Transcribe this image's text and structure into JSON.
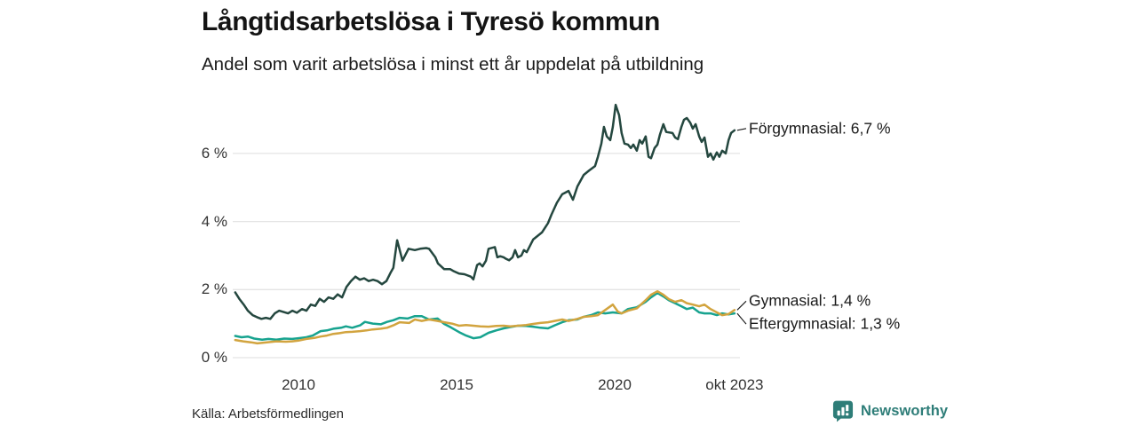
{
  "title": "Långtidsarbetslösa i Tyresö kommun",
  "subtitle": "Andel som varit arbetslösa i minst ett år uppdelat på utbildning",
  "source": "Källa: Arbetsförmedlingen",
  "brand": {
    "name": "Newsworthy",
    "color": "#2e7d78",
    "icon": "newsworthy-speech-bubble-bar-chart-icon"
  },
  "colors": {
    "background": "#ffffff",
    "gridline": "#e4e4e4",
    "tick_text": "#333333",
    "title_text": "#141414",
    "forgymnasial_line": "#24473f",
    "gymnasial_line": "#d2a43f",
    "eftergymnasial_line": "#17a38f"
  },
  "chart_data": {
    "type": "line",
    "title": "Långtidsarbetslösa i Tyresö kommun",
    "subtitle": "Andel som varit arbetslösa i minst ett år uppdelat på utbildning",
    "xlabel": "",
    "ylabel": "",
    "grid": "horizontal-only",
    "legend_position": "end-of-line-labels",
    "xlim": [
      2008.0,
      2023.95
    ],
    "ylim": [
      0,
      7.8
    ],
    "y_ticks": [
      {
        "value": 0,
        "label": "0 %"
      },
      {
        "value": 2,
        "label": "2 %"
      },
      {
        "value": 4,
        "label": "4 %"
      },
      {
        "value": 6,
        "label": "6 %"
      }
    ],
    "x_ticks": [
      {
        "year": 2010.0,
        "label": "2010"
      },
      {
        "year": 2015.0,
        "label": "2015"
      },
      {
        "year": 2020.0,
        "label": "2020"
      },
      {
        "year": 2023.79,
        "label": "okt 2023"
      }
    ],
    "series": [
      {
        "name": "Förgymnasial",
        "end_label": "Förgymnasial: 6,7 %",
        "end_value_text": "6,7 %",
        "color": "#24473f",
        "points": [
          [
            2008.0,
            1.92
          ],
          [
            2008.13,
            1.73
          ],
          [
            2008.27,
            1.56
          ],
          [
            2008.4,
            1.38
          ],
          [
            2008.55,
            1.25
          ],
          [
            2008.69,
            1.19
          ],
          [
            2008.83,
            1.14
          ],
          [
            2008.97,
            1.17
          ],
          [
            2009.11,
            1.14
          ],
          [
            2009.25,
            1.3
          ],
          [
            2009.39,
            1.38
          ],
          [
            2009.53,
            1.34
          ],
          [
            2009.67,
            1.3
          ],
          [
            2009.81,
            1.38
          ],
          [
            2009.95,
            1.32
          ],
          [
            2010.11,
            1.43
          ],
          [
            2010.25,
            1.38
          ],
          [
            2010.39,
            1.56
          ],
          [
            2010.53,
            1.52
          ],
          [
            2010.67,
            1.73
          ],
          [
            2010.81,
            1.64
          ],
          [
            2010.95,
            1.77
          ],
          [
            2011.1,
            1.73
          ],
          [
            2011.24,
            1.86
          ],
          [
            2011.38,
            1.77
          ],
          [
            2011.52,
            2.08
          ],
          [
            2011.66,
            2.25
          ],
          [
            2011.8,
            2.38
          ],
          [
            2011.94,
            2.29
          ],
          [
            2012.08,
            2.33
          ],
          [
            2012.22,
            2.25
          ],
          [
            2012.36,
            2.29
          ],
          [
            2012.5,
            2.25
          ],
          [
            2012.64,
            2.16
          ],
          [
            2012.78,
            2.25
          ],
          [
            2012.92,
            2.51
          ],
          [
            2013.0,
            2.64
          ],
          [
            2013.12,
            3.45
          ],
          [
            2013.29,
            2.85
          ],
          [
            2013.48,
            3.2
          ],
          [
            2013.68,
            3.16
          ],
          [
            2013.85,
            3.2
          ],
          [
            2014.04,
            3.22
          ],
          [
            2014.13,
            3.2
          ],
          [
            2014.33,
            2.95
          ],
          [
            2014.41,
            2.77
          ],
          [
            2014.61,
            2.6
          ],
          [
            2014.8,
            2.6
          ],
          [
            2014.89,
            2.55
          ],
          [
            2015.08,
            2.47
          ],
          [
            2015.25,
            2.45
          ],
          [
            2015.45,
            2.38
          ],
          [
            2015.53,
            2.3
          ],
          [
            2015.65,
            2.72
          ],
          [
            2015.73,
            2.77
          ],
          [
            2015.82,
            2.68
          ],
          [
            2015.93,
            2.85
          ],
          [
            2016.01,
            3.2
          ],
          [
            2016.21,
            3.25
          ],
          [
            2016.29,
            2.95
          ],
          [
            2016.38,
            2.98
          ],
          [
            2016.49,
            2.95
          ],
          [
            2016.57,
            2.9
          ],
          [
            2016.66,
            2.86
          ],
          [
            2016.77,
            2.95
          ],
          [
            2016.85,
            3.16
          ],
          [
            2016.94,
            2.95
          ],
          [
            2017.05,
            3.0
          ],
          [
            2017.13,
            3.16
          ],
          [
            2017.22,
            3.1
          ],
          [
            2017.33,
            3.3
          ],
          [
            2017.42,
            3.47
          ],
          [
            2017.7,
            3.68
          ],
          [
            2017.89,
            3.95
          ],
          [
            2018.0,
            4.2
          ],
          [
            2018.17,
            4.55
          ],
          [
            2018.34,
            4.8
          ],
          [
            2018.54,
            4.9
          ],
          [
            2018.68,
            4.64
          ],
          [
            2018.82,
            5.03
          ],
          [
            2019.02,
            5.37
          ],
          [
            2019.19,
            5.5
          ],
          [
            2019.38,
            5.63
          ],
          [
            2019.47,
            5.9
          ],
          [
            2019.58,
            6.29
          ],
          [
            2019.66,
            6.78
          ],
          [
            2019.75,
            6.5
          ],
          [
            2019.86,
            6.39
          ],
          [
            2019.94,
            6.78
          ],
          [
            2020.03,
            7.43
          ],
          [
            2020.14,
            7.12
          ],
          [
            2020.22,
            6.6
          ],
          [
            2020.31,
            6.29
          ],
          [
            2020.42,
            6.26
          ],
          [
            2020.51,
            6.16
          ],
          [
            2020.59,
            6.26
          ],
          [
            2020.7,
            6.08
          ],
          [
            2020.79,
            6.39
          ],
          [
            2020.87,
            6.29
          ],
          [
            2020.98,
            6.5
          ],
          [
            2021.07,
            5.9
          ],
          [
            2021.15,
            5.86
          ],
          [
            2021.26,
            6.16
          ],
          [
            2021.35,
            6.26
          ],
          [
            2021.43,
            6.55
          ],
          [
            2021.54,
            6.86
          ],
          [
            2021.63,
            6.63
          ],
          [
            2021.83,
            6.6
          ],
          [
            2021.91,
            6.47
          ],
          [
            2022.0,
            6.42
          ],
          [
            2022.11,
            6.78
          ],
          [
            2022.19,
            6.99
          ],
          [
            2022.28,
            7.04
          ],
          [
            2022.39,
            6.9
          ],
          [
            2022.47,
            6.73
          ],
          [
            2022.56,
            6.86
          ],
          [
            2022.67,
            6.5
          ],
          [
            2022.75,
            6.34
          ],
          [
            2022.84,
            6.47
          ],
          [
            2022.95,
            5.9
          ],
          [
            2023.03,
            6.0
          ],
          [
            2023.12,
            5.82
          ],
          [
            2023.23,
            6.03
          ],
          [
            2023.31,
            5.9
          ],
          [
            2023.4,
            6.08
          ],
          [
            2023.51,
            6.0
          ],
          [
            2023.6,
            6.39
          ],
          [
            2023.68,
            6.6
          ],
          [
            2023.79,
            6.68
          ]
        ]
      },
      {
        "name": "Eftergymnasial",
        "end_label": "Eftergymnasial: 1,3 %",
        "end_value_text": "1,3 %",
        "color": "#17a38f",
        "points": [
          [
            2008.0,
            0.64
          ],
          [
            2008.2,
            0.6
          ],
          [
            2008.4,
            0.62
          ],
          [
            2008.6,
            0.56
          ],
          [
            2008.85,
            0.53
          ],
          [
            2009.05,
            0.55
          ],
          [
            2009.3,
            0.53
          ],
          [
            2009.55,
            0.56
          ],
          [
            2009.8,
            0.55
          ],
          [
            2010.0,
            0.57
          ],
          [
            2010.25,
            0.6
          ],
          [
            2010.45,
            0.65
          ],
          [
            2010.7,
            0.78
          ],
          [
            2010.9,
            0.8
          ],
          [
            2011.1,
            0.85
          ],
          [
            2011.35,
            0.88
          ],
          [
            2011.5,
            0.92
          ],
          [
            2011.7,
            0.88
          ],
          [
            2011.95,
            0.95
          ],
          [
            2012.1,
            1.05
          ],
          [
            2012.35,
            1.0
          ],
          [
            2012.6,
            0.98
          ],
          [
            2012.8,
            1.05
          ],
          [
            2013.0,
            1.1
          ],
          [
            2013.2,
            1.17
          ],
          [
            2013.45,
            1.15
          ],
          [
            2013.68,
            1.22
          ],
          [
            2013.9,
            1.22
          ],
          [
            2014.13,
            1.12
          ],
          [
            2014.4,
            1.15
          ],
          [
            2014.61,
            0.99
          ],
          [
            2014.8,
            0.9
          ],
          [
            2015.08,
            0.75
          ],
          [
            2015.3,
            0.65
          ],
          [
            2015.53,
            0.57
          ],
          [
            2015.75,
            0.6
          ],
          [
            2016.01,
            0.73
          ],
          [
            2016.25,
            0.8
          ],
          [
            2016.49,
            0.86
          ],
          [
            2016.7,
            0.9
          ],
          [
            2016.94,
            0.94
          ],
          [
            2017.2,
            0.93
          ],
          [
            2017.42,
            0.91
          ],
          [
            2017.65,
            0.88
          ],
          [
            2017.89,
            0.86
          ],
          [
            2018.1,
            0.95
          ],
          [
            2018.34,
            1.04
          ],
          [
            2018.54,
            1.1
          ],
          [
            2018.82,
            1.12
          ],
          [
            2019.02,
            1.2
          ],
          [
            2019.25,
            1.25
          ],
          [
            2019.47,
            1.33
          ],
          [
            2019.7,
            1.3
          ],
          [
            2019.94,
            1.33
          ],
          [
            2020.22,
            1.3
          ],
          [
            2020.42,
            1.43
          ],
          [
            2020.7,
            1.48
          ],
          [
            2020.98,
            1.64
          ],
          [
            2021.15,
            1.77
          ],
          [
            2021.35,
            1.9
          ],
          [
            2021.54,
            1.8
          ],
          [
            2021.71,
            1.69
          ],
          [
            2021.91,
            1.6
          ],
          [
            2022.11,
            1.51
          ],
          [
            2022.28,
            1.43
          ],
          [
            2022.47,
            1.47
          ],
          [
            2022.67,
            1.33
          ],
          [
            2022.84,
            1.3
          ],
          [
            2023.03,
            1.3
          ],
          [
            2023.23,
            1.25
          ],
          [
            2023.4,
            1.3
          ],
          [
            2023.6,
            1.27
          ],
          [
            2023.79,
            1.3
          ]
        ]
      },
      {
        "name": "Gymnasial",
        "end_label": "Gymnasial: 1,4 %",
        "end_value_text": "1,4 %",
        "color": "#d2a43f",
        "points": [
          [
            2008.0,
            0.52
          ],
          [
            2008.25,
            0.48
          ],
          [
            2008.5,
            0.45
          ],
          [
            2008.7,
            0.42
          ],
          [
            2008.9,
            0.44
          ],
          [
            2009.1,
            0.46
          ],
          [
            2009.3,
            0.48
          ],
          [
            2009.6,
            0.47
          ],
          [
            2009.8,
            0.48
          ],
          [
            2010.0,
            0.5
          ],
          [
            2010.25,
            0.55
          ],
          [
            2010.5,
            0.58
          ],
          [
            2010.7,
            0.62
          ],
          [
            2010.9,
            0.65
          ],
          [
            2011.1,
            0.7
          ],
          [
            2011.3,
            0.72
          ],
          [
            2011.5,
            0.75
          ],
          [
            2011.7,
            0.76
          ],
          [
            2011.95,
            0.78
          ],
          [
            2012.15,
            0.8
          ],
          [
            2012.35,
            0.83
          ],
          [
            2012.6,
            0.85
          ],
          [
            2012.8,
            0.88
          ],
          [
            2013.0,
            0.95
          ],
          [
            2013.2,
            1.04
          ],
          [
            2013.5,
            1.02
          ],
          [
            2013.68,
            1.12
          ],
          [
            2013.9,
            1.08
          ],
          [
            2014.13,
            1.12
          ],
          [
            2014.4,
            1.08
          ],
          [
            2014.61,
            1.04
          ],
          [
            2014.85,
            1.0
          ],
          [
            2015.08,
            0.94
          ],
          [
            2015.3,
            0.96
          ],
          [
            2015.53,
            0.94
          ],
          [
            2015.75,
            0.92
          ],
          [
            2016.01,
            0.91
          ],
          [
            2016.25,
            0.93
          ],
          [
            2016.49,
            0.94
          ],
          [
            2016.7,
            0.92
          ],
          [
            2016.94,
            0.94
          ],
          [
            2017.2,
            0.96
          ],
          [
            2017.42,
            0.99
          ],
          [
            2017.65,
            1.02
          ],
          [
            2017.89,
            1.04
          ],
          [
            2018.1,
            1.08
          ],
          [
            2018.34,
            1.12
          ],
          [
            2018.54,
            1.08
          ],
          [
            2018.82,
            1.14
          ],
          [
            2019.02,
            1.2
          ],
          [
            2019.25,
            1.22
          ],
          [
            2019.47,
            1.25
          ],
          [
            2019.7,
            1.4
          ],
          [
            2019.94,
            1.56
          ],
          [
            2020.1,
            1.35
          ],
          [
            2020.22,
            1.3
          ],
          [
            2020.42,
            1.38
          ],
          [
            2020.7,
            1.45
          ],
          [
            2020.98,
            1.69
          ],
          [
            2021.15,
            1.85
          ],
          [
            2021.35,
            1.95
          ],
          [
            2021.54,
            1.85
          ],
          [
            2021.71,
            1.72
          ],
          [
            2021.91,
            1.64
          ],
          [
            2022.11,
            1.69
          ],
          [
            2022.28,
            1.6
          ],
          [
            2022.47,
            1.56
          ],
          [
            2022.67,
            1.51
          ],
          [
            2022.84,
            1.56
          ],
          [
            2023.03,
            1.43
          ],
          [
            2023.23,
            1.33
          ],
          [
            2023.4,
            1.25
          ],
          [
            2023.6,
            1.28
          ],
          [
            2023.79,
            1.4
          ]
        ]
      }
    ]
  }
}
